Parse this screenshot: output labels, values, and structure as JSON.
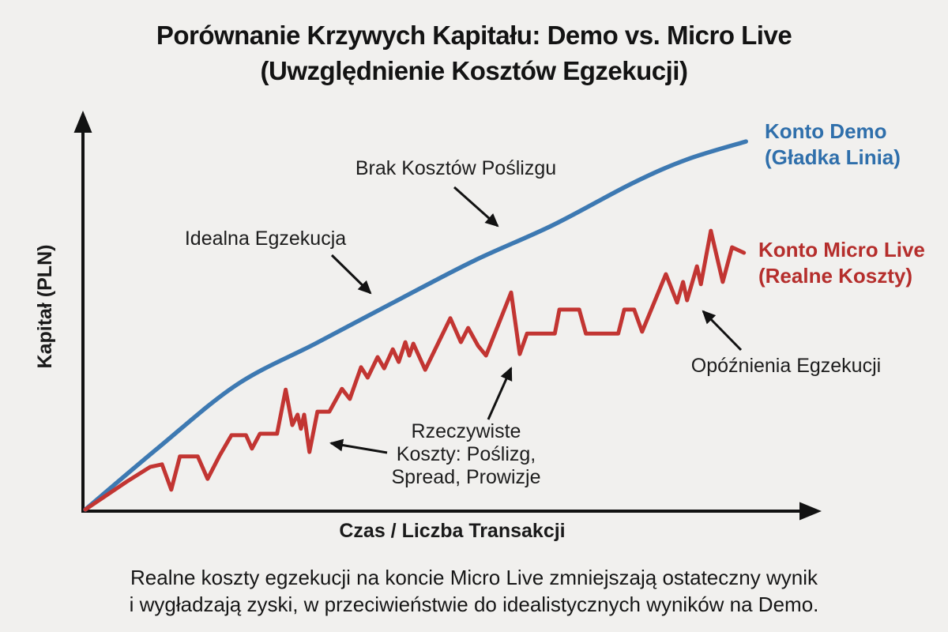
{
  "title": {
    "line1": "Porównanie Krzywych Kapitału: Demo vs. Micro Live",
    "line2": "(Uwzględnienie Kosztów Egzekucji)"
  },
  "axes": {
    "y_label": "Kapitał (PLN)",
    "x_label": "Czas / Liczba Transakcji"
  },
  "legend": {
    "demo": {
      "line1": "Konto Demo",
      "line2": "(Gładka Linia)",
      "color": "#2f6fab"
    },
    "live": {
      "line1": "Konto Micro Live",
      "line2": "(Realne Koszty)",
      "color": "#b52e2c"
    }
  },
  "annotations": {
    "brak": "Brak Kosztów Poślizgu",
    "idealna": "Idealna Egzekucja",
    "rzeczywiste": {
      "line1": "Rzeczywiste",
      "line2": "Koszty: Poślizg,",
      "line3": "Spread, Prowizje"
    },
    "opoznienia": "Opóźnienia Egzekucji"
  },
  "caption": {
    "line1": "Realne koszty egzekucji na koncie Micro Live zmniejszają ostateczny wynik",
    "line2": "i wygładzają zyski, w przeciwieństwie do idealistycznych wyników na Demo."
  },
  "colors": {
    "background": "#f1f0ee",
    "axis": "#121212",
    "demo_line": "#3d79b2",
    "live_line": "#c23532"
  },
  "chart_data": {
    "type": "line",
    "title": "Porównanie Krzywych Kapitału: Demo vs. Micro Live (Uwzględnienie Kosztów Egzekucji)",
    "xlabel": "Czas / Liczba Transakcji",
    "ylabel": "Kapitał (PLN)",
    "x_range": [
      0,
      100
    ],
    "y_range": [
      0,
      100
    ],
    "grid": false,
    "legend_position": "right-inline",
    "note": "Conceptual chart without numeric ticks; values in relative units 0-100",
    "series": [
      {
        "name": "Konto Demo (Gładka Linia)",
        "style": "smooth",
        "color": "#3d79b2",
        "points": [
          [
            0,
            0
          ],
          [
            11,
            16.5
          ],
          [
            22.9,
            33.4
          ],
          [
            34.9,
            44.5
          ],
          [
            46.8,
            55.6
          ],
          [
            58.8,
            66.6
          ],
          [
            70.7,
            76.1
          ],
          [
            82.7,
            87.3
          ],
          [
            91,
            93.7
          ],
          [
            99.9,
            98.5
          ]
        ]
      },
      {
        "name": "Konto Micro Live (Realne Koszty)",
        "style": "jagged",
        "color": "#c23532",
        "points": [
          [
            0,
            0
          ],
          [
            6.2,
            7.4
          ],
          [
            9.8,
            11.4
          ],
          [
            11.6,
            12.1
          ],
          [
            13,
            5.3
          ],
          [
            14.3,
            14.2
          ],
          [
            17,
            14.2
          ],
          [
            18.5,
            8.2
          ],
          [
            20.3,
            14.4
          ],
          [
            22.1,
            19.9
          ],
          [
            24.3,
            19.9
          ],
          [
            25.2,
            16.3
          ],
          [
            26.4,
            20.3
          ],
          [
            29,
            20.3
          ],
          [
            30.3,
            32.1
          ],
          [
            31.3,
            22.6
          ],
          [
            32.1,
            25.4
          ],
          [
            32.6,
            21.6
          ],
          [
            33.1,
            25.4
          ],
          [
            33.9,
            15.4
          ],
          [
            35.1,
            26.2
          ],
          [
            36.9,
            26.2
          ],
          [
            38.8,
            32.3
          ],
          [
            40,
            29.6
          ],
          [
            41.7,
            38.1
          ],
          [
            42.7,
            35.3
          ],
          [
            44.2,
            40.8
          ],
          [
            45.2,
            37.8
          ],
          [
            46.5,
            42.9
          ],
          [
            47.4,
            39.5
          ],
          [
            48.4,
            44.8
          ],
          [
            49,
            41.2
          ],
          [
            49.6,
            44.4
          ],
          [
            51.4,
            37.4
          ],
          [
            55.2,
            51.2
          ],
          [
            56.8,
            44.8
          ],
          [
            57.9,
            48.6
          ],
          [
            59.4,
            43.8
          ],
          [
            60.6,
            41.2
          ],
          [
            64.4,
            58.1
          ],
          [
            65.7,
            41.6
          ],
          [
            66.8,
            47.1
          ],
          [
            71,
            47.1
          ],
          [
            71.7,
            53.5
          ],
          [
            74.7,
            53.5
          ],
          [
            75.7,
            47.1
          ],
          [
            80.6,
            47.1
          ],
          [
            81.5,
            53.5
          ],
          [
            83,
            53.5
          ],
          [
            84.2,
            47.6
          ],
          [
            87.8,
            63
          ],
          [
            89.5,
            55.4
          ],
          [
            90.4,
            60.9
          ],
          [
            91,
            56
          ],
          [
            92.5,
            65.1
          ],
          [
            93.1,
            60.3
          ],
          [
            94.6,
            74.6
          ],
          [
            96.4,
            60.9
          ],
          [
            97.8,
            70.2
          ],
          [
            99.6,
            68.7
          ]
        ]
      }
    ]
  }
}
